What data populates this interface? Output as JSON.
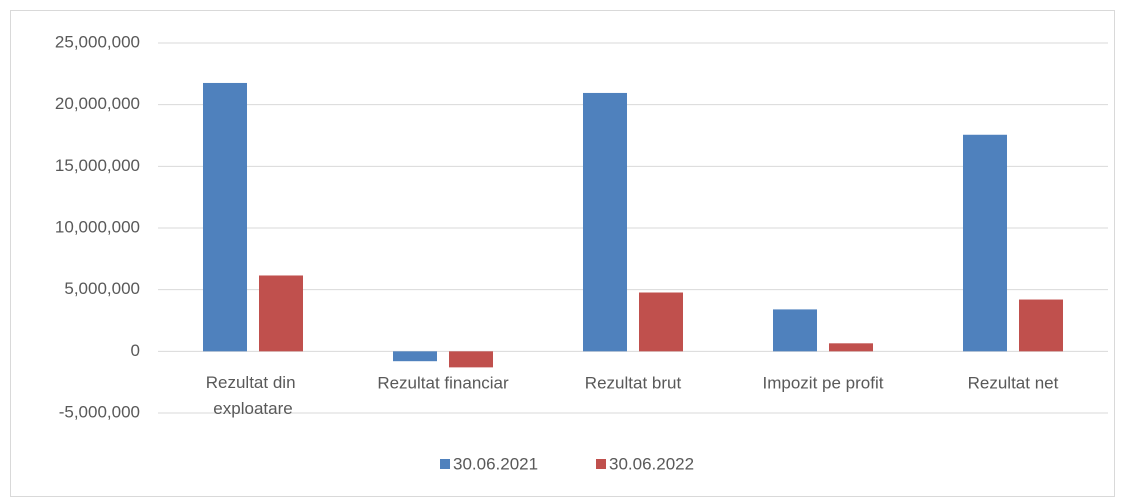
{
  "chart_data": {
    "type": "bar",
    "categories": [
      "Rezultat din exploatare",
      "Rezultat financiar",
      "Rezultat brut",
      "Impozit pe profit",
      "Rezultat net"
    ],
    "series": [
      {
        "name": "30.06.2021",
        "color": "#4f81bd",
        "values": [
          21760000,
          -800000,
          20950000,
          3400000,
          17560000
        ]
      },
      {
        "name": "30.06.2022",
        "color": "#c0504d",
        "values": [
          6150000,
          -1300000,
          4770000,
          650000,
          4200000
        ]
      }
    ],
    "ylim": [
      -5000000,
      25000000
    ],
    "yticks": [
      {
        "value": -5000000,
        "label": "-5,000,000"
      },
      0,
      {
        "value": 5000000,
        "label": "5,000,000"
      },
      {
        "value": 10000000,
        "label": "10,000,000"
      },
      {
        "value": 15000000,
        "label": "15,000,000"
      },
      {
        "value": 20000000,
        "label": "20,000,000"
      },
      {
        "value": 25000000,
        "label": "25,000,000"
      }
    ],
    "grid": true,
    "legend": "bottom"
  }
}
